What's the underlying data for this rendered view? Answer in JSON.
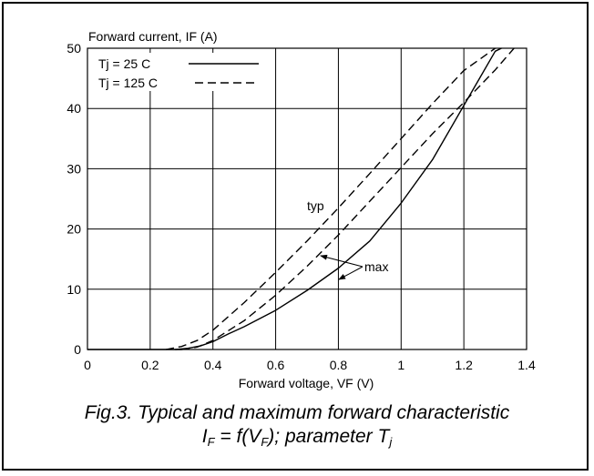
{
  "caption": {
    "line1": "Fig.3.   Typical and maximum forward characteristic",
    "line2_parts": {
      "i": "I",
      "i_sub": "F",
      "eq": " = f(V",
      "v_sub": "F",
      "rest": "); parameter T",
      "t_sub": "j"
    }
  },
  "chart_data": {
    "type": "line",
    "xlabel": "Forward voltage, VF (V)",
    "ylabel": "Forward current, IF (A)",
    "xlim": [
      0,
      1.4
    ],
    "ylim": [
      0,
      50
    ],
    "x_ticks": [
      0,
      0.2,
      0.4,
      0.6,
      0.8,
      1,
      1.2,
      1.4
    ],
    "x_tick_labels": [
      "0",
      "0.2",
      "0.4",
      "0.6",
      "0.8",
      "1",
      "1.2",
      "1.4"
    ],
    "y_ticks": [
      0,
      10,
      20,
      30,
      40,
      50
    ],
    "y_tick_labels": [
      "0",
      "10",
      "20",
      "30",
      "40",
      "50"
    ],
    "grid": true,
    "legend": {
      "placement": "top-left",
      "entries": [
        {
          "label": "Tj = 25 C",
          "style": "solid"
        },
        {
          "label": "Tj = 125 C",
          "style": "dashed"
        }
      ]
    },
    "annotations": {
      "typ": "typ",
      "max": "max"
    },
    "series": [
      {
        "style": "dashed",
        "group": "typ",
        "x": [
          0.25,
          0.3,
          0.35,
          0.4,
          0.5,
          0.6,
          0.7,
          0.8,
          0.9,
          1.0,
          1.1,
          1.2,
          1.3
        ],
        "y": [
          0.0,
          0.5,
          1.5,
          3.2,
          7.8,
          12.8,
          18.0,
          23.5,
          29.2,
          35.0,
          40.8,
          46.3,
          50.0
        ]
      },
      {
        "style": "dashed",
        "group": "max",
        "x": [
          0.3,
          0.35,
          0.4,
          0.5,
          0.6,
          0.7,
          0.8,
          0.9,
          1.0,
          1.1,
          1.2,
          1.3,
          1.36
        ],
        "y": [
          0.0,
          0.4,
          1.5,
          4.8,
          9.0,
          13.8,
          19.0,
          24.6,
          30.2,
          35.8,
          41.0,
          46.4,
          50.0
        ]
      },
      {
        "style": "solid",
        "group": "max",
        "x": [
          0.28,
          0.32,
          0.36,
          0.4,
          0.45,
          0.5,
          0.6,
          0.7,
          0.8,
          0.9,
          1.0,
          1.1,
          1.2,
          1.25,
          1.3,
          1.32
        ],
        "y": [
          0.0,
          0.2,
          0.6,
          1.3,
          2.6,
          3.8,
          6.5,
          9.8,
          13.5,
          18.0,
          24.3,
          31.5,
          40.5,
          45.0,
          49.5,
          50.0
        ]
      }
    ]
  }
}
